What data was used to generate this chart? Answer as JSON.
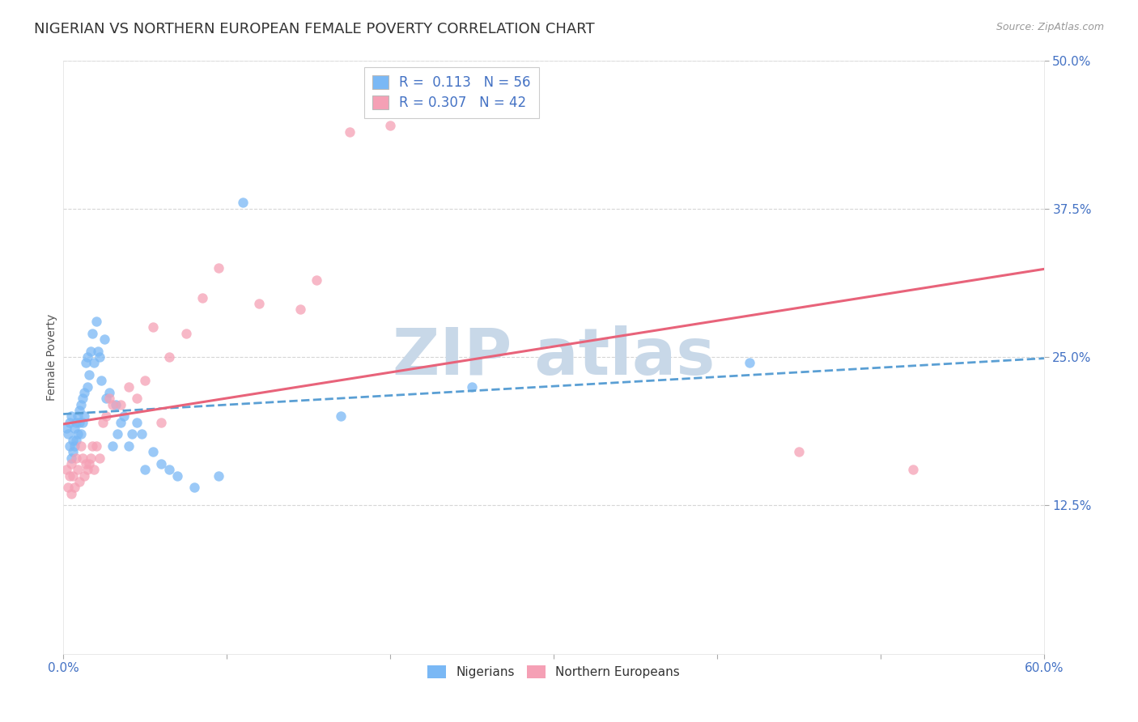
{
  "title": "NIGERIAN VS NORTHERN EUROPEAN FEMALE POVERTY CORRELATION CHART",
  "source": "Source: ZipAtlas.com",
  "ylabel": "Female Poverty",
  "xlim": [
    0.0,
    0.6
  ],
  "ylim": [
    0.0,
    0.5
  ],
  "xtick_positions": [
    0.0,
    0.1,
    0.2,
    0.3,
    0.4,
    0.5,
    0.6
  ],
  "xtick_labels": [
    "0.0%",
    "",
    "",
    "",
    "",
    "",
    "60.0%"
  ],
  "ytick_positions": [
    0.125,
    0.25,
    0.375,
    0.5
  ],
  "ytick_labels": [
    "12.5%",
    "25.0%",
    "37.5%",
    "50.0%"
  ],
  "nigerians_color": "#7ab8f5",
  "northern_europeans_color": "#f5a0b5",
  "nigerians_line_color": "#5a9fd4",
  "northern_europeans_line_color": "#e8637a",
  "R_nigerians": 0.113,
  "N_nigerians": 56,
  "R_northern": 0.307,
  "N_northern": 42,
  "nigerians_x": [
    0.002,
    0.003,
    0.004,
    0.004,
    0.005,
    0.005,
    0.006,
    0.006,
    0.007,
    0.007,
    0.008,
    0.008,
    0.009,
    0.009,
    0.01,
    0.01,
    0.011,
    0.011,
    0.012,
    0.012,
    0.013,
    0.013,
    0.014,
    0.015,
    0.015,
    0.016,
    0.017,
    0.018,
    0.019,
    0.02,
    0.021,
    0.022,
    0.023,
    0.025,
    0.026,
    0.028,
    0.03,
    0.032,
    0.033,
    0.035,
    0.037,
    0.04,
    0.042,
    0.045,
    0.048,
    0.05,
    0.055,
    0.06,
    0.065,
    0.07,
    0.08,
    0.095,
    0.11,
    0.17,
    0.25,
    0.42
  ],
  "nigerians_y": [
    0.19,
    0.185,
    0.195,
    0.175,
    0.2,
    0.165,
    0.18,
    0.17,
    0.175,
    0.19,
    0.195,
    0.18,
    0.2,
    0.185,
    0.195,
    0.205,
    0.21,
    0.185,
    0.215,
    0.195,
    0.22,
    0.2,
    0.245,
    0.225,
    0.25,
    0.235,
    0.255,
    0.27,
    0.245,
    0.28,
    0.255,
    0.25,
    0.23,
    0.265,
    0.215,
    0.22,
    0.175,
    0.21,
    0.185,
    0.195,
    0.2,
    0.175,
    0.185,
    0.195,
    0.185,
    0.155,
    0.17,
    0.16,
    0.155,
    0.15,
    0.14,
    0.15,
    0.38,
    0.2,
    0.225,
    0.245
  ],
  "northern_x": [
    0.002,
    0.003,
    0.004,
    0.005,
    0.005,
    0.006,
    0.007,
    0.008,
    0.009,
    0.01,
    0.011,
    0.012,
    0.013,
    0.014,
    0.015,
    0.016,
    0.017,
    0.018,
    0.019,
    0.02,
    0.022,
    0.024,
    0.026,
    0.028,
    0.03,
    0.035,
    0.04,
    0.045,
    0.05,
    0.055,
    0.06,
    0.065,
    0.075,
    0.085,
    0.095,
    0.12,
    0.145,
    0.155,
    0.175,
    0.2,
    0.45,
    0.52
  ],
  "northern_y": [
    0.155,
    0.14,
    0.15,
    0.135,
    0.16,
    0.15,
    0.14,
    0.165,
    0.155,
    0.145,
    0.175,
    0.165,
    0.15,
    0.16,
    0.155,
    0.16,
    0.165,
    0.175,
    0.155,
    0.175,
    0.165,
    0.195,
    0.2,
    0.215,
    0.21,
    0.21,
    0.225,
    0.215,
    0.23,
    0.275,
    0.195,
    0.25,
    0.27,
    0.3,
    0.325,
    0.295,
    0.29,
    0.315,
    0.44,
    0.445,
    0.17,
    0.155
  ],
  "background_color": "#ffffff",
  "grid_color": "#cccccc",
  "title_fontsize": 13,
  "axis_label_fontsize": 10,
  "tick_fontsize": 11,
  "legend_fontsize": 12,
  "watermark_color": "#c8d8e8",
  "tick_color": "#4472c4"
}
